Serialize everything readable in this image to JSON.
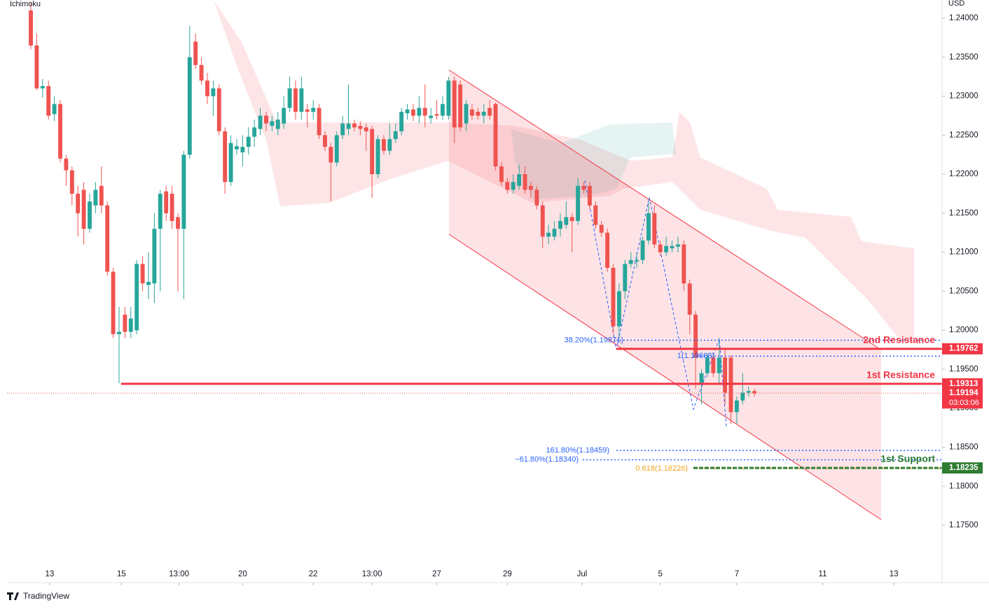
{
  "chart_data": {
    "type": "candlestick",
    "indicator": "Ichimoku",
    "currency": "USD",
    "brand": "TradingView",
    "up_color": "#26a69a",
    "down_color": "#ef5350",
    "ylim": [
      1.16774,
      1.24233
    ],
    "yticks": [
      {
        "value": 1.24,
        "label": "1.24000"
      },
      {
        "value": 1.235,
        "label": "1.23500"
      },
      {
        "value": 1.23,
        "label": "1.23000"
      },
      {
        "value": 1.225,
        "label": "1.22500"
      },
      {
        "value": 1.22,
        "label": "1.22000"
      },
      {
        "value": 1.215,
        "label": "1.21500"
      },
      {
        "value": 1.21,
        "label": "1.21000"
      },
      {
        "value": 1.205,
        "label": "1.20500"
      },
      {
        "value": 1.2,
        "label": "1.20000"
      },
      {
        "value": 1.195,
        "label": "1.19500"
      },
      {
        "value": 1.19,
        "label": "1.19000"
      },
      {
        "value": 1.185,
        "label": "1.18500"
      },
      {
        "value": 1.18,
        "label": "1.18000"
      },
      {
        "value": 1.175,
        "label": "1.17500"
      }
    ],
    "xlim": [
      -4.05,
      154.3
    ],
    "xticks": [
      {
        "value": 3.2,
        "label": "13"
      },
      {
        "value": 15.4,
        "label": "15"
      },
      {
        "value": 25.2,
        "label": "13:00"
      },
      {
        "value": 36,
        "label": "20"
      },
      {
        "value": 48,
        "label": "22"
      },
      {
        "value": 58,
        "label": "13:00"
      },
      {
        "value": 69,
        "label": "27"
      },
      {
        "value": 81,
        "label": "29"
      },
      {
        "value": 93.7,
        "label": "Jul"
      },
      {
        "value": 107,
        "label": "5"
      },
      {
        "value": 120,
        "label": "7"
      },
      {
        "value": 134.6,
        "label": "11"
      },
      {
        "value": 146.7,
        "label": "13"
      }
    ],
    "open": [
      1.241,
      1.2365,
      1.231,
      1.2313,
      1.2277,
      1.229,
      1.222,
      1.2205,
      1.2175,
      1.218,
      1.213,
      1.216,
      1.2185,
      1.216,
      1.2075,
      1.1995,
      1.202,
      1.1998,
      1.2,
      1.2085,
      1.2058,
      1.206,
      1.213,
      1.2178,
      1.2175,
      1.2145,
      1.213,
      1.2225,
      1.237,
      1.234,
      1.232,
      1.23,
      1.231,
      1.2255,
      1.219,
      1.2232,
      1.2228,
      1.2235,
      1.2248,
      1.2258,
      1.2275,
      1.2262,
      1.2258,
      1.2265,
      1.2285,
      1.231,
      1.228,
      1.2283,
      1.228,
      1.2285,
      1.225,
      1.2235,
      1.2215,
      1.225,
      1.2258,
      1.2265,
      1.2262,
      1.226,
      1.2258,
      1.22,
      1.2245,
      1.223,
      1.2245,
      1.2255,
      1.2278,
      1.2283,
      1.2275,
      1.2285,
      1.2272,
      1.2277,
      1.2275,
      1.2275,
      1.232,
      1.2315,
      1.2265,
      1.2283,
      1.228,
      1.2275,
      1.2285,
      1.229,
      1.221,
      1.219,
      1.218,
      1.2185,
      1.22,
      1.2185,
      1.218,
      1.216,
      1.212,
      1.212,
      1.213,
      1.2135,
      1.2145,
      1.214,
      1.2185,
      1.2185,
      1.216,
      1.2135,
      1.2125,
      1.208,
      1.2005,
      1.205,
      1.2085,
      1.2088,
      1.209,
      1.2115,
      1.215,
      1.211,
      1.21,
      1.2105,
      1.2107,
      1.211,
      1.206,
      1.202,
      1.193,
      1.1945,
      1.1965,
      1.1945,
      1.1965,
      1.1965,
      1.1895,
      1.191,
      1.192,
      1.1922
    ],
    "high": [
      1.242,
      1.238,
      1.2322,
      1.232,
      1.23,
      1.2295,
      1.2225,
      1.221,
      1.2185,
      1.219,
      1.2175,
      1.219,
      1.221,
      1.2165,
      1.208,
      1.203,
      1.203,
      1.203,
      1.209,
      1.2095,
      1.21,
      1.215,
      1.218,
      1.2185,
      1.2185,
      1.215,
      1.223,
      1.239,
      1.238,
      1.235,
      1.233,
      1.232,
      1.2315,
      1.226,
      1.225,
      1.2245,
      1.225,
      1.226,
      1.227,
      1.2285,
      1.228,
      1.2275,
      1.228,
      1.23,
      1.2325,
      1.232,
      1.2325,
      1.229,
      1.2295,
      1.229,
      1.2255,
      1.224,
      1.2255,
      1.2275,
      1.2315,
      1.227,
      1.2268,
      1.2265,
      1.2262,
      1.225,
      1.225,
      1.2265,
      1.2265,
      1.2285,
      1.229,
      1.229,
      1.23,
      1.2315,
      1.2285,
      1.2295,
      1.23,
      1.2325,
      1.2325,
      1.232,
      1.2295,
      1.229,
      1.2285,
      1.229,
      1.2295,
      1.2292,
      1.2215,
      1.2195,
      1.22,
      1.2212,
      1.221,
      1.219,
      1.2185,
      1.2165,
      1.2135,
      1.214,
      1.215,
      1.2165,
      1.215,
      1.2195,
      1.219,
      1.219,
      1.2165,
      1.214,
      1.213,
      1.2085,
      1.206,
      1.209,
      1.21,
      1.21,
      1.212,
      1.2165,
      1.216,
      1.2115,
      1.212,
      1.2115,
      1.212,
      1.2115,
      1.2065,
      1.2025,
      1.195,
      1.197,
      1.197,
      1.199,
      1.1975,
      1.1968,
      1.1915,
      1.1945,
      1.1928,
      1.1925
    ],
    "low": [
      1.236,
      1.2308,
      1.2298,
      1.227,
      1.2268,
      1.2215,
      1.2185,
      1.216,
      1.212,
      1.211,
      1.2125,
      1.215,
      1.215,
      1.207,
      1.199,
      1.1932,
      1.199,
      1.199,
      1.1995,
      1.205,
      1.204,
      1.2035,
      1.205,
      1.214,
      1.213,
      1.205,
      1.204,
      1.222,
      1.2335,
      1.2315,
      1.229,
      1.2275,
      1.225,
      1.2175,
      1.2185,
      1.2225,
      1.221,
      1.2225,
      1.2235,
      1.225,
      1.2255,
      1.2255,
      1.225,
      1.2258,
      1.228,
      1.227,
      1.227,
      1.226,
      1.227,
      1.2245,
      1.223,
      1.2165,
      1.221,
      1.2245,
      1.225,
      1.2255,
      1.225,
      1.223,
      1.217,
      1.2195,
      1.2225,
      1.2225,
      1.224,
      1.225,
      1.227,
      1.2268,
      1.2265,
      1.226,
      1.2265,
      1.227,
      1.227,
      1.227,
      1.224,
      1.2255,
      1.2255,
      1.227,
      1.227,
      1.2265,
      1.227,
      1.2205,
      1.2185,
      1.2175,
      1.2175,
      1.218,
      1.2175,
      1.217,
      1.2155,
      1.2105,
      1.211,
      1.2115,
      1.212,
      1.213,
      1.21,
      1.2135,
      1.2175,
      1.2155,
      1.213,
      1.212,
      1.2075,
      1.1995,
      1.199,
      1.204,
      1.208,
      1.208,
      1.2085,
      1.211,
      1.2105,
      1.2095,
      1.2095,
      1.21,
      1.21,
      1.205,
      1.1995,
      1.1925,
      1.1905,
      1.194,
      1.194,
      1.193,
      1.1905,
      1.188,
      1.188,
      1.1905,
      1.1915,
      1.1915
    ],
    "close": [
      1.2365,
      1.231,
      1.2313,
      1.2275,
      1.229,
      1.222,
      1.2205,
      1.2175,
      1.215,
      1.213,
      1.2165,
      1.218,
      1.216,
      1.2075,
      1.1995,
      1.1998,
      1.1998,
      1.2015,
      1.2085,
      1.206,
      1.2062,
      1.213,
      1.2175,
      1.215,
      1.214,
      1.213,
      1.2225,
      1.235,
      1.234,
      1.232,
      1.23,
      1.231,
      1.2255,
      1.219,
      1.224,
      1.2236,
      1.2235,
      1.2248,
      1.226,
      1.2275,
      1.2265,
      1.2268,
      1.227,
      1.2285,
      1.231,
      1.228,
      1.231,
      1.228,
      1.2285,
      1.225,
      1.2235,
      1.2215,
      1.225,
      1.2265,
      1.2265,
      1.226,
      1.2258,
      1.2255,
      1.22,
      1.2245,
      1.223,
      1.2245,
      1.2255,
      1.228,
      1.2283,
      1.2275,
      1.2285,
      1.2275,
      1.2275,
      1.2275,
      1.229,
      1.232,
      1.226,
      1.226,
      1.229,
      1.2275,
      1.2275,
      1.228,
      1.2275,
      1.221,
      1.219,
      1.218,
      1.219,
      1.22,
      1.218,
      1.218,
      1.216,
      1.212,
      1.2125,
      1.213,
      1.214,
      1.2145,
      1.214,
      1.2185,
      1.218,
      1.216,
      1.2135,
      1.2125,
      1.208,
      1.2005,
      1.205,
      1.2085,
      1.209,
      1.209,
      1.2115,
      1.215,
      1.211,
      1.21,
      1.2108,
      1.2108,
      1.211,
      1.206,
      1.202,
      1.1965,
      1.1945,
      1.1965,
      1.1945,
      1.1965,
      1.192,
      1.1895,
      1.191,
      1.192,
      1.1922,
      1.1919
    ],
    "levels": [
      {
        "name": "2nd Resistance",
        "value": 1.19762,
        "color": "#f23645"
      },
      {
        "name": "1st Resistance",
        "value": 1.19313,
        "color": "#f23645"
      },
      {
        "name": "1st Support",
        "value": 1.18235,
        "color": "#2e7d32"
      }
    ],
    "fib_levels": [
      {
        "label": "38.20%(1.19871)",
        "value": 1.19871,
        "color": "#2962ff"
      },
      {
        "label": "1(1.19668)",
        "value": 1.19668,
        "color": "#2962ff"
      },
      {
        "label": "161.80%(1.18459)",
        "value": 1.18459,
        "color": "#2962ff"
      },
      {
        "label": "−61.80%(1.18340)",
        "value": 1.1834,
        "color": "#2962ff"
      },
      {
        "label": "0.618(1.18226)",
        "value": 1.18226,
        "color": "#f5a623"
      }
    ],
    "last_price": {
      "value": 1.19194,
      "countdown": "03:03:06"
    }
  }
}
